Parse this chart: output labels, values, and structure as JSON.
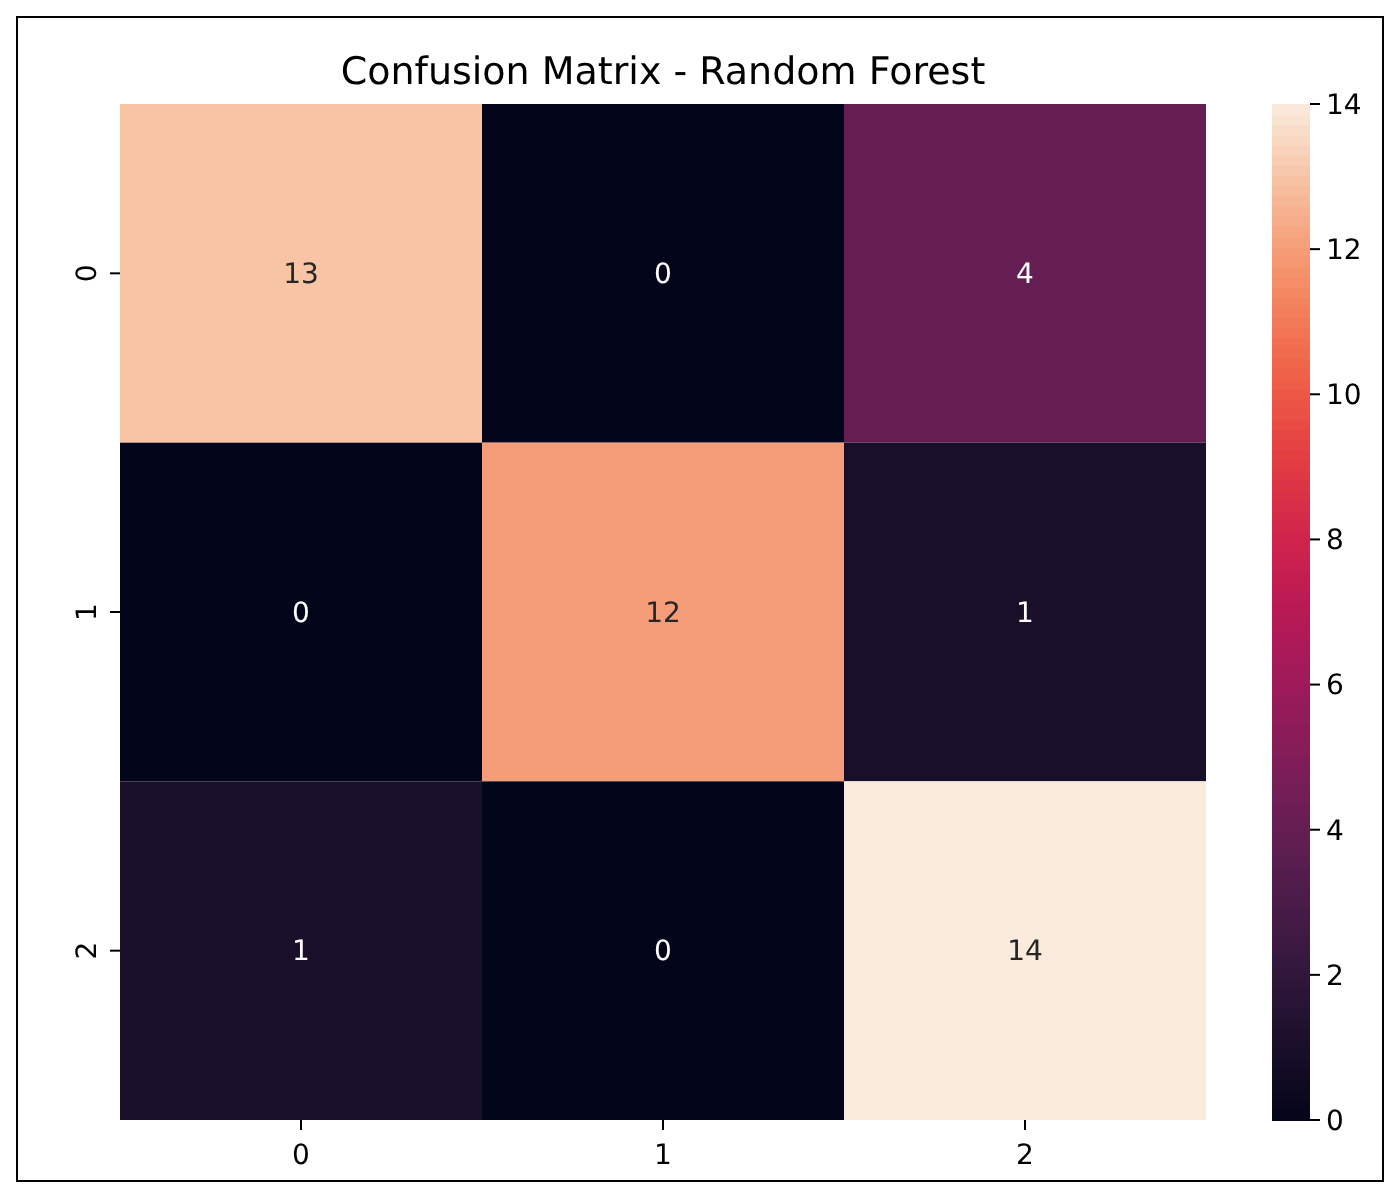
{
  "chart_data": {
    "type": "heatmap",
    "title": "Confusion Matrix - Random Forest",
    "categories": [
      "0",
      "1",
      "2"
    ],
    "y_categories": [
      "0",
      "1",
      "2"
    ],
    "cells": [
      [
        13,
        0,
        4
      ],
      [
        0,
        12,
        1
      ],
      [
        1,
        0,
        14
      ]
    ],
    "clim": [
      0,
      14
    ],
    "cticks": [
      0,
      2,
      4,
      6,
      8,
      10,
      12,
      14
    ],
    "data_labels": true
  }
}
